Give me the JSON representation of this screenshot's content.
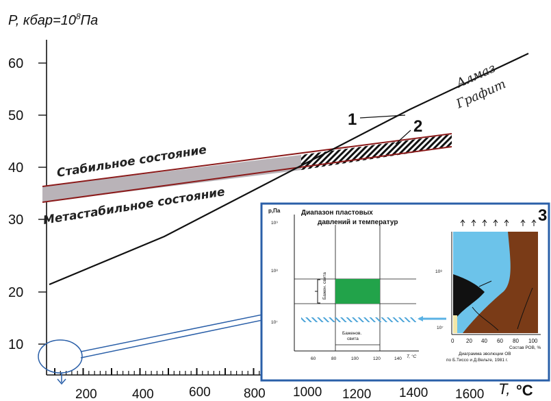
{
  "y_title": "P, кбар=10",
  "y_title_exp": "8",
  "y_title_unit": "Па",
  "x_unit_T": "T,",
  "x_unit_C": "°C",
  "y_ticks": [
    "60",
    "50",
    "40",
    "30",
    "20",
    "10"
  ],
  "x_ticks": [
    "200",
    "400",
    "600",
    "800",
    "1000",
    "1200",
    "1400",
    "1600"
  ],
  "phase_upper": "Алмаз",
  "phase_lower": "Графит",
  "curve1_label": "1",
  "curve2_label": "2",
  "stable_label": "Стабильное состояние",
  "metastable_label": "Метастабильное состояние",
  "inset": {
    "number": "3",
    "y_axis_label": "p,Па",
    "title_line1": "Диапазон пластовых",
    "title_line2": "давлений и температур",
    "y_exp_9": "10⁹",
    "y_exp_8": "10⁸",
    "y_exp_7": "10⁷",
    "left_ticks": [
      "60",
      "80",
      "100",
      "120",
      "140"
    ],
    "left_x_unit": "T, °C",
    "bazhen_side": "Бажен. свита",
    "bazhen_bottom_1": "Баженов.",
    "bazhen_bottom_2": "свита",
    "right_y_8": "10⁸",
    "right_y_7": "10⁷",
    "right_ticks": [
      "0",
      "20",
      "40",
      "60",
      "80",
      "100"
    ],
    "right_x_unit": "Состав РОВ, %",
    "caption_1": "Диаграмма эволюции ОВ",
    "caption_2": "по Б.Тиссо и Д.Вельте, 1981 г."
  }
}
